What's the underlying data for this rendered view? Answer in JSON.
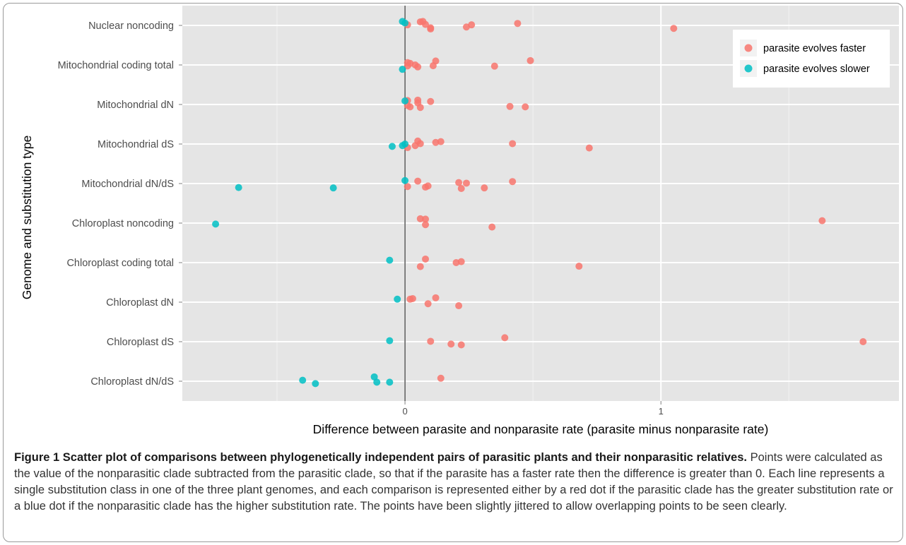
{
  "chart_data": {
    "type": "scatter",
    "xlabel": "Difference between parasite and nonparasite rate (parasite minus nonparasite rate)",
    "ylabel": "Genome and substitution type",
    "x_ticks": [
      0,
      1
    ],
    "x_tick_labels": [
      "0",
      "1"
    ],
    "xlim": [
      -0.87,
      1.93
    ],
    "categories": [
      "Nuclear noncoding",
      "Mitochondrial coding total",
      "Mitochondrial dN",
      "Mitochondrial dS",
      "Mitochondrial dN/dS",
      "Chloroplast noncoding",
      "Chloroplast coding total",
      "Chloroplast dN",
      "Chloroplast dS",
      "Chloroplast dN/dS"
    ],
    "grid": true,
    "legend_position": "top-right",
    "reference_line_x": 0,
    "series": [
      {
        "name": "parasite evolves faster",
        "color": "#F8766D",
        "points": [
          {
            "category": "Nuclear noncoding",
            "x": 0.06,
            "jitter": 0.18
          },
          {
            "category": "Nuclear noncoding",
            "x": 0.07,
            "jitter": 0.2
          },
          {
            "category": "Nuclear noncoding",
            "x": 0.08,
            "jitter": 0.05
          },
          {
            "category": "Nuclear noncoding",
            "x": 0.01,
            "jitter": 0.03
          },
          {
            "category": "Nuclear noncoding",
            "x": 0.1,
            "jitter": -0.12
          },
          {
            "category": "Nuclear noncoding",
            "x": 0.1,
            "jitter": -0.18
          },
          {
            "category": "Nuclear noncoding",
            "x": 0.26,
            "jitter": 0.03
          },
          {
            "category": "Nuclear noncoding",
            "x": 0.24,
            "jitter": -0.08
          },
          {
            "category": "Nuclear noncoding",
            "x": 0.44,
            "jitter": 0.1
          },
          {
            "category": "Nuclear noncoding",
            "x": 1.05,
            "jitter": -0.15
          },
          {
            "category": "Mitochondrial coding total",
            "x": 0.01,
            "jitter": 0.12
          },
          {
            "category": "Mitochondrial coding total",
            "x": 0.02,
            "jitter": 0.08
          },
          {
            "category": "Mitochondrial coding total",
            "x": 0.04,
            "jitter": 0.0
          },
          {
            "category": "Mitochondrial coding total",
            "x": 0.01,
            "jitter": -0.05
          },
          {
            "category": "Mitochondrial coding total",
            "x": 0.05,
            "jitter": -0.1
          },
          {
            "category": "Mitochondrial coding total",
            "x": 0.12,
            "jitter": 0.2
          },
          {
            "category": "Mitochondrial coding total",
            "x": 0.11,
            "jitter": -0.04
          },
          {
            "category": "Mitochondrial coding total",
            "x": 0.35,
            "jitter": -0.06
          },
          {
            "category": "Mitochondrial coding total",
            "x": 0.49,
            "jitter": 0.22
          },
          {
            "category": "Mitochondrial dN",
            "x": 0.01,
            "jitter": 0.2
          },
          {
            "category": "Mitochondrial dN",
            "x": 0.05,
            "jitter": 0.22
          },
          {
            "category": "Mitochondrial dN",
            "x": 0.05,
            "jitter": 0.08
          },
          {
            "category": "Mitochondrial dN",
            "x": 0.01,
            "jitter": -0.05
          },
          {
            "category": "Mitochondrial dN",
            "x": 0.02,
            "jitter": -0.12
          },
          {
            "category": "Mitochondrial dN",
            "x": 0.06,
            "jitter": -0.15
          },
          {
            "category": "Mitochondrial dN",
            "x": 0.1,
            "jitter": 0.15
          },
          {
            "category": "Mitochondrial dN",
            "x": 0.41,
            "jitter": -0.1
          },
          {
            "category": "Mitochondrial dN",
            "x": 0.47,
            "jitter": -0.12
          },
          {
            "category": "Mitochondrial dS",
            "x": 0.05,
            "jitter": 0.15
          },
          {
            "category": "Mitochondrial dS",
            "x": 0.06,
            "jitter": 0.02
          },
          {
            "category": "Mitochondrial dS",
            "x": 0.04,
            "jitter": -0.08
          },
          {
            "category": "Mitochondrial dS",
            "x": 0.01,
            "jitter": -0.18
          },
          {
            "category": "Mitochondrial dS",
            "x": 0.12,
            "jitter": 0.08
          },
          {
            "category": "Mitochondrial dS",
            "x": 0.14,
            "jitter": 0.12
          },
          {
            "category": "Mitochondrial dS",
            "x": 0.42,
            "jitter": 0.02
          },
          {
            "category": "Mitochondrial dS",
            "x": 0.72,
            "jitter": -0.2
          },
          {
            "category": "Mitochondrial dN/dS",
            "x": 0.05,
            "jitter": 0.12
          },
          {
            "category": "Mitochondrial dN/dS",
            "x": 0.01,
            "jitter": -0.15
          },
          {
            "category": "Mitochondrial dN/dS",
            "x": 0.08,
            "jitter": -0.18
          },
          {
            "category": "Mitochondrial dN/dS",
            "x": 0.09,
            "jitter": -0.12
          },
          {
            "category": "Mitochondrial dN/dS",
            "x": 0.21,
            "jitter": 0.05
          },
          {
            "category": "Mitochondrial dN/dS",
            "x": 0.24,
            "jitter": 0.02
          },
          {
            "category": "Mitochondrial dN/dS",
            "x": 0.22,
            "jitter": -0.25
          },
          {
            "category": "Mitochondrial dN/dS",
            "x": 0.31,
            "jitter": -0.22
          },
          {
            "category": "Mitochondrial dN/dS",
            "x": 0.42,
            "jitter": 0.1
          },
          {
            "category": "Chloroplast noncoding",
            "x": 0.06,
            "jitter": 0.22
          },
          {
            "category": "Chloroplast noncoding",
            "x": 0.08,
            "jitter": 0.2
          },
          {
            "category": "Chloroplast noncoding",
            "x": 0.08,
            "jitter": -0.08
          },
          {
            "category": "Chloroplast noncoding",
            "x": 0.34,
            "jitter": -0.2
          },
          {
            "category": "Chloroplast noncoding",
            "x": 1.63,
            "jitter": 0.12
          },
          {
            "category": "Chloroplast coding total",
            "x": 0.08,
            "jitter": 0.18
          },
          {
            "category": "Chloroplast coding total",
            "x": 0.06,
            "jitter": -0.2
          },
          {
            "category": "Chloroplast coding total",
            "x": 0.2,
            "jitter": 0.0
          },
          {
            "category": "Chloroplast coding total",
            "x": 0.22,
            "jitter": 0.05
          },
          {
            "category": "Chloroplast coding total",
            "x": 0.68,
            "jitter": -0.18
          },
          {
            "category": "Chloroplast dN",
            "x": 0.02,
            "jitter": 0.15
          },
          {
            "category": "Chloroplast dN",
            "x": 0.03,
            "jitter": 0.18
          },
          {
            "category": "Chloroplast dN",
            "x": 0.12,
            "jitter": 0.22
          },
          {
            "category": "Chloroplast dN",
            "x": 0.09,
            "jitter": -0.08
          },
          {
            "category": "Chloroplast dN",
            "x": 0.21,
            "jitter": -0.18
          },
          {
            "category": "Chloroplast dS",
            "x": 0.1,
            "jitter": 0.02
          },
          {
            "category": "Chloroplast dS",
            "x": 0.18,
            "jitter": -0.12
          },
          {
            "category": "Chloroplast dS",
            "x": 0.22,
            "jitter": -0.16
          },
          {
            "category": "Chloroplast dS",
            "x": 0.39,
            "jitter": 0.2
          },
          {
            "category": "Chloroplast dS",
            "x": 1.79,
            "jitter": 0.0
          },
          {
            "category": "Chloroplast dN/dS",
            "x": 0.14,
            "jitter": 0.15
          }
        ]
      },
      {
        "name": "parasite evolves slower",
        "color": "#00BFC4",
        "points": [
          {
            "category": "Nuclear noncoding",
            "x": -0.01,
            "jitter": 0.2
          },
          {
            "category": "Nuclear noncoding",
            "x": 0.0,
            "jitter": 0.12
          },
          {
            "category": "Mitochondrial coding total",
            "x": -0.01,
            "jitter": -0.22
          },
          {
            "category": "Mitochondrial dN",
            "x": 0.0,
            "jitter": 0.18
          },
          {
            "category": "Mitochondrial dS",
            "x": 0.0,
            "jitter": 0.0
          },
          {
            "category": "Mitochondrial dS",
            "x": -0.01,
            "jitter": -0.08
          },
          {
            "category": "Mitochondrial dS",
            "x": -0.05,
            "jitter": -0.12
          },
          {
            "category": "Mitochondrial dN/dS",
            "x": 0.0,
            "jitter": 0.15
          },
          {
            "category": "Mitochondrial dN/dS",
            "x": -0.65,
            "jitter": -0.2
          },
          {
            "category": "Mitochondrial dN/dS",
            "x": -0.28,
            "jitter": -0.22
          },
          {
            "category": "Chloroplast noncoding",
            "x": -0.74,
            "jitter": -0.05
          },
          {
            "category": "Chloroplast coding total",
            "x": -0.06,
            "jitter": 0.12
          },
          {
            "category": "Chloroplast dN",
            "x": -0.03,
            "jitter": 0.15
          },
          {
            "category": "Chloroplast dS",
            "x": -0.06,
            "jitter": 0.05
          },
          {
            "category": "Chloroplast dN/dS",
            "x": -0.12,
            "jitter": 0.22
          },
          {
            "category": "Chloroplast dN/dS",
            "x": -0.11,
            "jitter": -0.05
          },
          {
            "category": "Chloroplast dN/dS",
            "x": -0.06,
            "jitter": -0.05
          },
          {
            "category": "Chloroplast dN/dS",
            "x": -0.4,
            "jitter": 0.05
          },
          {
            "category": "Chloroplast dN/dS",
            "x": -0.35,
            "jitter": -0.12
          }
        ]
      }
    ]
  },
  "caption": {
    "lead": "Figure 1 Scatter plot of comparisons between phylogenetically independent pairs of parasitic plants and their nonparasitic relatives.",
    "body": "Points were calculated as the value of the nonparasitic clade subtracted from the parasitic clade, so that if the parasite has a faster rate then the difference is greater than 0. Each line represents a single substitution class in one of the three plant genomes, and each comparison is represented either by a red dot if the parasitic clade has the greater substitution rate or a blue dot if the nonparasitic clade has the higher substitution rate. The points have been slightly jittered to allow overlapping points to be seen clearly."
  }
}
